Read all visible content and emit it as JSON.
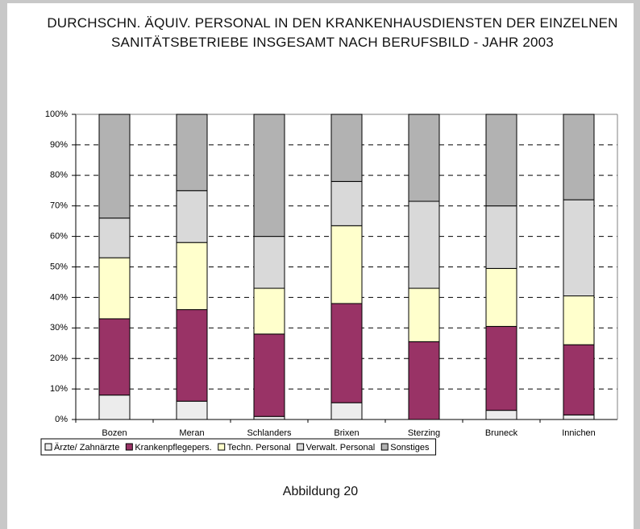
{
  "chart_data": {
    "type": "stacked_bar",
    "title": "DURCHSCHN. ÄQUIV. PERSONAL IN DEN KRANKENHAUSDIENSTEN DER EINZELNEN SANITÄTSBETRIEBE INSGESAMT NACH BERUFSBILD - JAHR 2003",
    "caption": "Abbildung 20",
    "categories": [
      "Bozen",
      "Meran",
      "Schlanders",
      "Brixen",
      "Sterzing",
      "Bruneck",
      "Innichen"
    ],
    "series": [
      {
        "name": "Ärzte/ Zahnärzte",
        "color": "#ececec",
        "values": [
          8,
          6,
          1,
          5.5,
          0,
          3,
          1.5
        ]
      },
      {
        "name": "Krankenpflegepers.",
        "color": "#993366",
        "values": [
          25,
          30,
          27,
          32.5,
          25.5,
          27.5,
          23
        ]
      },
      {
        "name": "Techn. Personal",
        "color": "#ffffcc",
        "values": [
          20,
          22,
          15,
          25.5,
          17.5,
          19,
          16
        ]
      },
      {
        "name": "Verwalt. Personal",
        "color": "#d9d9d9",
        "values": [
          13,
          17,
          17,
          14.5,
          28.5,
          20.5,
          31.5
        ]
      },
      {
        "name": "Sonstiges",
        "color": "#b2b2b2",
        "values": [
          34,
          25,
          40,
          22,
          28.5,
          30,
          28
        ]
      }
    ],
    "ylim": [
      0,
      100
    ],
    "yticks": [
      {
        "value": 0,
        "label": "0%"
      },
      {
        "value": 10,
        "label": "10%"
      },
      {
        "value": 20,
        "label": "20%"
      },
      {
        "value": 30,
        "label": "30%"
      },
      {
        "value": 40,
        "label": "40%"
      },
      {
        "value": 50,
        "label": "50%"
      },
      {
        "value": 60,
        "label": "60%"
      },
      {
        "value": 70,
        "label": "70%"
      },
      {
        "value": 80,
        "label": "80%"
      },
      {
        "value": 90,
        "label": "90%"
      },
      {
        "value": 100,
        "label": "100%"
      }
    ],
    "grid": true
  }
}
